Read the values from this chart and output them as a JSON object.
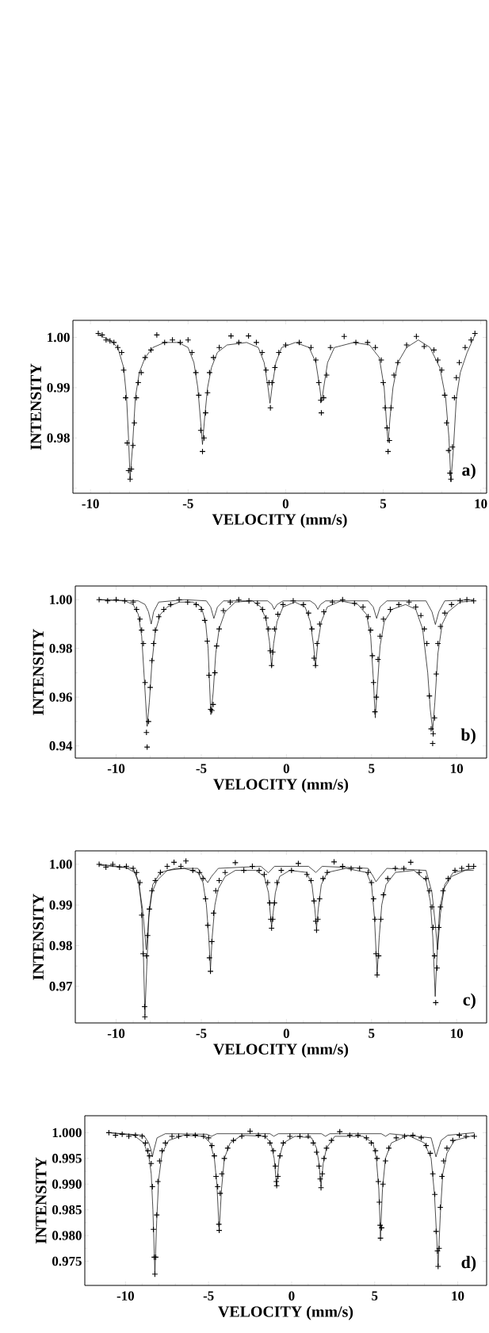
{
  "chart_data": [
    {
      "type": "scatter",
      "xlabel": "VELOCITY (mm/s)",
      "ylabel": "INTENSITY",
      "annotations": [
        "a)"
      ],
      "xlim": [
        -10.9,
        10.3
      ],
      "ylim": [
        0.969,
        1.0034
      ],
      "xticks": [
        -10,
        -5,
        0,
        5,
        10
      ],
      "yticks": [
        {
          "value": 0.97,
          "label": null
        },
        {
          "value": 0.98,
          "label": "0.98"
        },
        {
          "value": 0.99,
          "label": "0.99"
        },
        {
          "value": 1.0,
          "label": "1.00"
        }
      ],
      "series": [
        {
          "marker": "cross",
          "color": "#000000",
          "x": [
            -9.6,
            -9.4,
            -9.2,
            -9.0,
            -8.8,
            -8.6,
            -8.4,
            -8.3,
            -8.2,
            -8.12,
            -8.05,
            -7.97,
            -7.9,
            -7.82,
            -7.75,
            -7.65,
            -7.55,
            -7.4,
            -7.2,
            -6.9,
            -6.6,
            -6.2,
            -5.8,
            -5.4,
            -5.0,
            -4.8,
            -4.6,
            -4.45,
            -4.35,
            -4.26,
            -4.18,
            -4.1,
            -4.0,
            -3.9,
            -3.7,
            -3.4,
            -2.8,
            -2.4,
            -1.9,
            -1.5,
            -1.2,
            -1.0,
            -0.85,
            -0.78,
            -0.7,
            -0.55,
            -0.35,
            0.0,
            0.7,
            1.3,
            1.55,
            1.7,
            1.8,
            1.83,
            1.95,
            2.1,
            2.3,
            3.0,
            3.6,
            4.2,
            4.6,
            4.9,
            5.0,
            5.1,
            5.2,
            5.25,
            5.32,
            5.4,
            5.55,
            5.75,
            6.2,
            6.7,
            7.1,
            7.6,
            7.8,
            8.0,
            8.15,
            8.25,
            8.35,
            8.42,
            8.47,
            8.55,
            8.65,
            8.75,
            8.9,
            9.2,
            9.5,
            9.7
          ],
          "values": [
            1.0008,
            1.0005,
            0.9995,
            0.9993,
            0.999,
            0.998,
            0.997,
            0.9935,
            0.988,
            0.979,
            0.9735,
            0.9718,
            0.9738,
            0.9785,
            0.983,
            0.988,
            0.991,
            0.993,
            0.996,
            0.9975,
            1.0005,
            0.999,
            0.9995,
            0.999,
            0.9995,
            0.997,
            0.993,
            0.9885,
            0.9815,
            0.9773,
            0.98,
            0.985,
            0.989,
            0.993,
            0.996,
            0.998,
            1.0003,
            0.999,
            1.0003,
            0.999,
            0.997,
            0.9935,
            0.991,
            0.986,
            0.991,
            0.994,
            0.997,
            0.9985,
            0.999,
            0.998,
            0.9955,
            0.991,
            0.9875,
            0.985,
            0.988,
            0.9925,
            0.998,
            1.0002,
            0.999,
            0.999,
            0.998,
            0.9955,
            0.991,
            0.986,
            0.982,
            0.9773,
            0.9795,
            0.986,
            0.9925,
            0.995,
            0.9985,
            1.0002,
            0.9982,
            0.9975,
            0.9955,
            0.9935,
            0.9885,
            0.983,
            0.9775,
            0.973,
            0.9718,
            0.9782,
            0.988,
            0.992,
            0.995,
            0.998,
            0.9995,
            1.0008
          ]
        },
        {
          "type": "line",
          "color": "#000000",
          "x": [
            -9.6,
            -9.0,
            -8.6,
            -8.3,
            -8.15,
            -8.05,
            -7.97,
            -7.85,
            -7.7,
            -7.5,
            -7.2,
            -6.8,
            -6.2,
            -5.5,
            -5.0,
            -4.7,
            -4.5,
            -4.35,
            -4.26,
            -4.15,
            -4.0,
            -3.8,
            -3.5,
            -3.0,
            -2.0,
            -1.4,
            -1.1,
            -0.9,
            -0.8,
            -0.7,
            -0.5,
            -0.2,
            0.5,
            1.2,
            1.55,
            1.75,
            1.84,
            1.95,
            2.15,
            2.5,
            3.5,
            4.3,
            4.8,
            5.05,
            5.17,
            5.25,
            5.35,
            5.5,
            5.75,
            6.2,
            6.8,
            7.4,
            7.9,
            8.2,
            8.37,
            8.47,
            8.6,
            8.75,
            8.95,
            9.3,
            9.7
          ],
          "values": [
            1.0005,
            0.9995,
            0.998,
            0.994,
            0.988,
            0.98,
            0.9719,
            0.978,
            0.988,
            0.993,
            0.996,
            0.998,
            0.999,
            0.999,
            0.998,
            0.995,
            0.99,
            0.983,
            0.9787,
            0.984,
            0.99,
            0.994,
            0.997,
            0.9985,
            0.999,
            0.998,
            0.995,
            0.99,
            0.9869,
            0.99,
            0.995,
            0.998,
            0.999,
            0.998,
            0.995,
            0.99,
            0.9871,
            0.99,
            0.995,
            0.998,
            0.999,
            0.9985,
            0.996,
            0.99,
            0.983,
            0.9791,
            0.984,
            0.99,
            0.995,
            0.998,
            0.9995,
            0.998,
            0.994,
            0.988,
            0.98,
            0.9713,
            0.978,
            0.988,
            0.993,
            0.997,
            1.0005
          ]
        }
      ]
    },
    {
      "type": "scatter",
      "xlabel": "VELOCITY (mm/s)",
      "ylabel": "INTENSITY",
      "annotations": [
        "b)"
      ],
      "xlim": [
        -12.4,
        11.76
      ],
      "ylim": [
        0.935,
        1.0056
      ],
      "xticks": [
        -10,
        -5,
        0,
        5,
        10
      ],
      "yticks": [
        {
          "value": 0.94,
          "label": "0.94"
        },
        {
          "value": 0.96,
          "label": "0.96"
        },
        {
          "value": 0.98,
          "label": "0.98"
        },
        {
          "value": 1.0,
          "label": "1.00"
        }
      ],
      "series": [
        {
          "marker": "cross",
          "color": "#000000",
          "x": [
            -11,
            -10.5,
            -10,
            -9.5,
            -9,
            -8.8,
            -8.6,
            -8.5,
            -8.4,
            -8.3,
            -8.22,
            -8.18,
            -8.1,
            -8.0,
            -7.9,
            -7.8,
            -7.7,
            -7.5,
            -7.2,
            -6.8,
            -6.3,
            -5.8,
            -5.3,
            -5.0,
            -4.8,
            -4.65,
            -4.55,
            -4.45,
            -4.38,
            -4.3,
            -4.2,
            -4.1,
            -3.95,
            -3.7,
            -3.3,
            -2.8,
            -2.2,
            -1.7,
            -1.4,
            -1.2,
            -1.05,
            -0.95,
            -0.87,
            -0.8,
            -0.7,
            -0.5,
            -0.2,
            0.4,
            1.0,
            1.3,
            1.5,
            1.62,
            1.71,
            1.8,
            1.95,
            2.2,
            2.7,
            3.3,
            4.0,
            4.5,
            4.8,
            4.95,
            5.05,
            5.12,
            5.2,
            5.28,
            5.38,
            5.5,
            5.7,
            6.1,
            6.6,
            7.2,
            7.6,
            7.9,
            8.1,
            8.25,
            8.4,
            8.5,
            8.59,
            8.62,
            8.7,
            8.8,
            8.9,
            9.05,
            9.3,
            9.7,
            10.2,
            10.6,
            11.0
          ],
          "values": [
            1.0,
            0.9995,
            1.0,
            0.9995,
            0.999,
            0.996,
            0.992,
            0.9875,
            0.982,
            0.966,
            0.9455,
            0.9395,
            0.95,
            0.964,
            0.975,
            0.982,
            0.9875,
            0.993,
            0.996,
            0.998,
            1.0,
            0.999,
            0.998,
            0.996,
            0.9915,
            0.983,
            0.969,
            0.955,
            0.9545,
            0.957,
            0.97,
            0.981,
            0.988,
            0.9955,
            0.999,
            1.0,
            0.9995,
            0.9985,
            0.996,
            0.9925,
            0.988,
            0.979,
            0.973,
            0.9785,
            0.988,
            0.994,
            0.998,
            0.9995,
            0.998,
            0.9945,
            0.988,
            0.976,
            0.973,
            0.982,
            0.99,
            0.995,
            0.999,
            1.0,
            0.9985,
            0.997,
            0.993,
            0.9875,
            0.977,
            0.966,
            0.954,
            0.96,
            0.9755,
            0.985,
            0.992,
            0.996,
            0.998,
            0.999,
            0.997,
            0.9935,
            0.988,
            0.982,
            0.9605,
            0.947,
            0.941,
            0.945,
            0.9515,
            0.9695,
            0.982,
            0.989,
            0.9945,
            0.998,
            0.9995,
            1.0,
            0.9995
          ]
        },
        {
          "type": "line",
          "color": "#000000",
          "x": [
            -11,
            -9.5,
            -9.0,
            -8.7,
            -8.5,
            -8.35,
            -8.18,
            -8.05,
            -7.9,
            -7.7,
            -7.4,
            -7.0,
            -6.3,
            -5.5,
            -5.0,
            -4.75,
            -4.6,
            -4.44,
            -4.3,
            -4.15,
            -3.95,
            -3.6,
            -3.0,
            -2.0,
            -1.5,
            -1.2,
            -1.0,
            -0.87,
            -0.75,
            -0.55,
            -0.2,
            0.5,
            1.1,
            1.4,
            1.58,
            1.71,
            1.84,
            2.05,
            2.4,
            3.2,
            4.2,
            4.7,
            4.95,
            5.1,
            5.22,
            5.35,
            5.5,
            5.75,
            6.2,
            7.0,
            7.6,
            8.0,
            8.3,
            8.45,
            8.59,
            8.72,
            8.9,
            9.15,
            9.5,
            10.2,
            11.0
          ],
          "values": [
            1.0,
            0.9995,
            0.998,
            0.994,
            0.985,
            0.968,
            0.948,
            0.958,
            0.974,
            0.987,
            0.994,
            0.997,
            0.999,
            0.999,
            0.997,
            0.991,
            0.98,
            0.9528,
            0.962,
            0.978,
            0.988,
            0.995,
            0.999,
            0.9995,
            0.997,
            0.992,
            0.983,
            0.9724,
            0.982,
            0.991,
            0.997,
            0.999,
            0.997,
            0.991,
            0.982,
            0.973,
            0.982,
            0.991,
            0.997,
            0.9995,
            0.998,
            0.994,
            0.985,
            0.968,
            0.9515,
            0.965,
            0.981,
            0.991,
            0.996,
            0.998,
            0.996,
            0.988,
            0.97,
            0.955,
            0.9463,
            0.958,
            0.978,
            0.99,
            0.995,
            0.999,
            0.9995
          ]
        },
        {
          "type": "line",
          "color": "#000000",
          "x": [
            -11,
            -8.7,
            -8.3,
            -8.1,
            -7.94,
            -7.8,
            -7.5,
            -6,
            -4.7,
            -4.45,
            -4.26,
            -4.05,
            -3.7,
            -1.1,
            -0.85,
            -0.72,
            -0.55,
            -0.2,
            1.4,
            1.7,
            1.85,
            2.0,
            2.3,
            4.8,
            5.1,
            5.3,
            5.5,
            5.9,
            8.2,
            8.55,
            8.75,
            8.95,
            9.3,
            11
          ],
          "values": [
            1.0,
            0.9995,
            0.998,
            0.995,
            0.99,
            0.995,
            0.999,
            1.0,
            0.9995,
            0.997,
            0.9923,
            0.997,
            0.9995,
            0.9995,
            0.998,
            0.996,
            0.998,
            0.9995,
            0.9995,
            0.998,
            0.996,
            0.998,
            0.9995,
            0.9995,
            0.997,
            0.9923,
            0.997,
            0.9995,
            0.9995,
            0.995,
            0.9898,
            0.995,
            0.9995,
            1.0
          ]
        }
      ]
    },
    {
      "type": "scatter",
      "xlabel": "VELOCITY (mm/s)",
      "ylabel": "INTENSITY",
      "annotations": [
        "c)"
      ],
      "xlim": [
        -12.4,
        11.76
      ],
      "ylim": [
        0.961,
        1.0033
      ],
      "xticks": [
        -10,
        -5,
        0,
        5,
        10
      ],
      "yticks": [
        {
          "value": 0.97,
          "label": "0.97"
        },
        {
          "value": 0.98,
          "label": "0.98"
        },
        {
          "value": 0.99,
          "label": "0.99"
        },
        {
          "value": 1.0,
          "label": "1.00"
        }
      ],
      "series": [
        {
          "marker": "cross",
          "color": "#000000",
          "x": [
            -11,
            -10.6,
            -10.2,
            -9.8,
            -9.4,
            -9.0,
            -8.8,
            -8.6,
            -8.5,
            -8.42,
            -8.33,
            -8.31,
            -8.22,
            -8.15,
            -8.05,
            -7.9,
            -7.7,
            -7.4,
            -7.0,
            -6.6,
            -6.2,
            -5.9,
            -5.5,
            -5.1,
            -4.9,
            -4.75,
            -4.62,
            -4.52,
            -4.46,
            -4.38,
            -4.28,
            -4.15,
            -3.95,
            -3.6,
            -3.0,
            -2.5,
            -2.0,
            -1.6,
            -1.3,
            -1.1,
            -0.98,
            -0.92,
            -0.87,
            -0.8,
            -0.7,
            -0.55,
            -0.3,
            0.3,
            0.7,
            1.2,
            1.45,
            1.62,
            1.72,
            1.77,
            1.85,
            1.95,
            2.15,
            2.4,
            2.8,
            3.3,
            3.8,
            4.3,
            4.8,
            5.0,
            5.12,
            5.2,
            5.26,
            5.33,
            5.42,
            5.55,
            5.7,
            5.95,
            6.4,
            6.9,
            7.3,
            7.8,
            8.2,
            8.4,
            8.55,
            8.62,
            8.7,
            8.77,
            8.85,
            8.95,
            9.05,
            9.2,
            9.5,
            9.9,
            10.3,
            10.7,
            11.0
          ],
          "values": [
            1.0,
            0.9993,
            1.0,
            0.9993,
            0.9995,
            0.999,
            0.998,
            0.9955,
            0.9875,
            0.978,
            0.965,
            0.9625,
            0.9775,
            0.9825,
            0.989,
            0.9935,
            0.996,
            0.998,
            0.9995,
            1.0005,
            0.9995,
            1.0008,
            0.9985,
            0.998,
            0.9965,
            0.9915,
            0.985,
            0.977,
            0.9737,
            0.981,
            0.988,
            0.9935,
            0.996,
            0.998,
            1.0004,
            0.9985,
            0.9995,
            0.9985,
            0.9975,
            0.9955,
            0.9905,
            0.9865,
            0.9843,
            0.9865,
            0.9905,
            0.9955,
            0.9985,
            0.9985,
            1.0002,
            0.9975,
            0.996,
            0.991,
            0.986,
            0.9838,
            0.9865,
            0.9915,
            0.9965,
            0.998,
            1.0006,
            0.9995,
            0.999,
            0.999,
            0.998,
            0.9955,
            0.9915,
            0.9865,
            0.978,
            0.9728,
            0.9775,
            0.9865,
            0.9925,
            0.9965,
            0.999,
            0.999,
            1.0005,
            0.998,
            0.9965,
            0.9935,
            0.9895,
            0.9845,
            0.9775,
            0.966,
            0.9745,
            0.9845,
            0.9895,
            0.9935,
            0.9965,
            0.9985,
            0.999,
            0.9995,
            0.9995
          ]
        },
        {
          "type": "line",
          "color": "#000000",
          "x": [
            -11,
            -9.5,
            -8.9,
            -8.65,
            -8.5,
            -8.4,
            -8.31,
            -8.2,
            -8.08,
            -7.9,
            -7.6,
            -7.0,
            -6,
            -5.2,
            -4.9,
            -4.7,
            -4.56,
            -4.46,
            -4.36,
            -4.2,
            -4.0,
            -3.6,
            -3.0,
            -1.8,
            -1.3,
            -1.05,
            -0.95,
            -0.87,
            -0.78,
            -0.65,
            -0.4,
            0.2,
            1.2,
            1.5,
            1.67,
            1.77,
            1.87,
            2.05,
            2.4,
            3.5,
            4.7,
            5.0,
            5.17,
            5.33,
            5.45,
            5.6,
            5.85,
            6.4,
            7.5,
            8.2,
            8.45,
            8.6,
            8.74,
            8.86,
            9.0,
            9.25,
            9.7,
            10.5,
            11
          ],
          "values": [
            1.0,
            0.9993,
            0.998,
            0.995,
            0.989,
            0.978,
            0.963,
            0.975,
            0.987,
            0.993,
            0.996,
            0.9985,
            0.999,
            0.998,
            0.9955,
            0.99,
            0.982,
            0.9742,
            0.982,
            0.99,
            0.994,
            0.997,
            0.9985,
            0.9985,
            0.997,
            0.993,
            0.988,
            0.9847,
            0.988,
            0.993,
            0.997,
            0.9985,
            0.998,
            0.995,
            0.989,
            0.9842,
            0.989,
            0.995,
            0.998,
            0.999,
            0.998,
            0.995,
            0.987,
            0.973,
            0.982,
            0.99,
            0.995,
            0.998,
            0.9985,
            0.996,
            0.991,
            0.982,
            0.9675,
            0.979,
            0.989,
            0.994,
            0.997,
            0.9985,
            0.9985
          ]
        },
        {
          "type": "line",
          "color": "#000000",
          "x": [
            -11,
            -9,
            -8.7,
            -8.45,
            -8.23,
            -8.05,
            -7.85,
            -7.4,
            -6.5,
            -5.2,
            -4.9,
            -4.62,
            -4.4,
            -4.0,
            -1.5,
            -1.06,
            -0.7,
            1.3,
            1.73,
            2.1,
            4.8,
            5.1,
            5.26,
            5.5,
            5.9,
            8.2,
            8.55,
            8.75,
            8.88,
            9.05,
            9.3,
            9.8,
            11
          ],
          "values": [
            0.9998,
            0.999,
            0.996,
            0.989,
            0.979,
            0.989,
            0.995,
            0.998,
            0.999,
            0.999,
            0.997,
            0.9955,
            0.997,
            0.999,
            0.9995,
            0.9979,
            0.9995,
            0.9995,
            0.998,
            0.9995,
            0.999,
            0.997,
            0.9957,
            0.997,
            0.999,
            0.9985,
            0.993,
            0.985,
            0.979,
            0.988,
            0.995,
            0.998,
            0.999
          ]
        }
      ]
    },
    {
      "type": "scatter",
      "xlabel": "VELOCITY (mm/s)",
      "ylabel": "INTENSITY",
      "annotations": [
        "d)"
      ],
      "xlim": [
        -12.45,
        11.74
      ],
      "ylim": [
        0.9703,
        1.0033
      ],
      "xticks": [
        -10,
        -5,
        0,
        5,
        10
      ],
      "yticks": [
        {
          "value": 0.975,
          "label": "0.975"
        },
        {
          "value": 0.98,
          "label": "0.980"
        },
        {
          "value": 0.985,
          "label": "0.985"
        },
        {
          "value": 0.99,
          "label": "0.990"
        },
        {
          "value": 0.995,
          "label": "0.995"
        },
        {
          "value": 1.0,
          "label": "1.000"
        }
      ],
      "series": [
        {
          "marker": "cross",
          "color": "#000000",
          "x": [
            -11,
            -10.6,
            -10.2,
            -9.8,
            -9.4,
            -9.0,
            -8.8,
            -8.65,
            -8.55,
            -8.45,
            -8.38,
            -8.32,
            -8.27,
            -8.23,
            -8.18,
            -8.12,
            -8.05,
            -7.95,
            -7.8,
            -7.6,
            -7.2,
            -6.8,
            -6.3,
            -5.8,
            -5.3,
            -5.0,
            -4.8,
            -4.65,
            -4.55,
            -4.45,
            -4.38,
            -4.36,
            -4.3,
            -4.2,
            -4.05,
            -3.85,
            -3.5,
            -3.0,
            -2.5,
            -2.0,
            -1.6,
            -1.3,
            -1.1,
            -0.98,
            -0.92,
            -0.9,
            -0.82,
            -0.7,
            -0.5,
            -0.1,
            0.5,
            1.0,
            1.3,
            1.5,
            1.65,
            1.72,
            1.77,
            1.85,
            1.95,
            2.1,
            2.4,
            2.9,
            3.5,
            4.0,
            4.5,
            4.8,
            5.05,
            5.15,
            5.22,
            5.28,
            5.33,
            5.35,
            5.42,
            5.5,
            5.65,
            5.85,
            6.3,
            6.8,
            7.3,
            7.8,
            8.1,
            8.35,
            8.5,
            8.62,
            8.7,
            8.78,
            8.82,
            8.88,
            8.95,
            9.05,
            9.15,
            9.35,
            9.7,
            10.1,
            10.5,
            11.0
          ],
          "values": [
            1.0,
            0.9995,
            0.9997,
            0.9993,
            0.9995,
            0.9993,
            0.998,
            0.9965,
            0.9955,
            0.994,
            0.9895,
            0.9812,
            0.9758,
            0.9725,
            0.9758,
            0.984,
            0.9905,
            0.9945,
            0.9965,
            0.998,
            0.9993,
            0.9993,
            0.9995,
            0.9995,
            0.9993,
            0.999,
            0.9975,
            0.9955,
            0.9915,
            0.9895,
            0.9822,
            0.981,
            0.9882,
            0.992,
            0.995,
            0.997,
            0.9985,
            0.9993,
            1.0003,
            0.9995,
            0.9993,
            0.998,
            0.9965,
            0.9935,
            0.9905,
            0.9897,
            0.9915,
            0.9955,
            0.998,
            0.9993,
            0.9993,
            0.9993,
            0.998,
            0.9962,
            0.9935,
            0.991,
            0.9893,
            0.992,
            0.995,
            0.997,
            0.9985,
            1.0002,
            0.9995,
            0.9995,
            0.999,
            0.998,
            0.9965,
            0.995,
            0.9905,
            0.9865,
            0.982,
            0.9795,
            0.9815,
            0.99,
            0.9945,
            0.997,
            0.999,
            0.9993,
            0.9995,
            0.999,
            0.9975,
            0.996,
            0.992,
            0.988,
            0.9808,
            0.977,
            0.974,
            0.9775,
            0.9855,
            0.9915,
            0.9945,
            0.997,
            0.9985,
            0.9995,
            0.9993,
            0.9993
          ]
        },
        {
          "type": "line",
          "color": "#000000",
          "x": [
            -11,
            -9.5,
            -8.9,
            -8.6,
            -8.45,
            -8.35,
            -8.23,
            -8.12,
            -8.0,
            -7.8,
            -7.4,
            -6.5,
            -5.3,
            -4.9,
            -4.65,
            -4.5,
            -4.36,
            -4.22,
            -4.05,
            -3.7,
            -3.0,
            -1.6,
            -1.25,
            -1.05,
            -0.9,
            -0.75,
            -0.5,
            0.2,
            1.2,
            1.5,
            1.65,
            1.77,
            1.9,
            2.1,
            2.6,
            4.3,
            4.9,
            5.1,
            5.25,
            5.35,
            5.47,
            5.65,
            6.0,
            7.0,
            8.0,
            8.4,
            8.6,
            8.82,
            8.95,
            9.1,
            9.35,
            9.8,
            11.0
          ],
          "values": [
            1.0,
            0.9995,
            0.998,
            0.9955,
            0.992,
            0.985,
            0.9727,
            0.983,
            0.991,
            0.996,
            0.9985,
            0.9995,
            0.9993,
            0.998,
            0.995,
            0.99,
            0.981,
            0.989,
            0.995,
            0.998,
            0.9995,
            0.9993,
            0.998,
            0.995,
            0.9896,
            0.995,
            0.998,
            0.9993,
            0.999,
            0.997,
            0.994,
            0.9896,
            0.994,
            0.997,
            0.9993,
            0.9993,
            0.998,
            0.995,
            0.989,
            0.98,
            0.989,
            0.995,
            0.998,
            0.9995,
            0.998,
            0.995,
            0.988,
            0.9742,
            0.984,
            0.992,
            0.996,
            0.9985,
            0.9995
          ]
        },
        {
          "type": "line",
          "color": "#000000",
          "x": [
            -11,
            -8.9,
            -8.6,
            -8.45,
            -8.38,
            -8.3,
            -8.1,
            -7.6,
            -5.1,
            -4.82,
            -4.5,
            -1.3,
            -1.07,
            -0.8,
            1.8,
            2.04,
            2.3,
            5.4,
            5.66,
            5.9,
            8.4,
            8.6,
            8.69,
            8.8,
            9.0,
            9.4,
            11
          ],
          "values": [
            1.0,
            0.9995,
            0.998,
            0.9965,
            0.9953,
            0.9965,
            0.999,
            0.9998,
            0.9997,
            0.9993,
            0.9998,
            0.9998,
            0.9993,
            0.9998,
            0.9998,
            0.9993,
            0.9998,
            0.9998,
            0.9993,
            0.9998,
            0.999,
            0.9965,
            0.9953,
            0.9965,
            0.9985,
            0.9995,
            1.0
          ]
        }
      ]
    }
  ]
}
